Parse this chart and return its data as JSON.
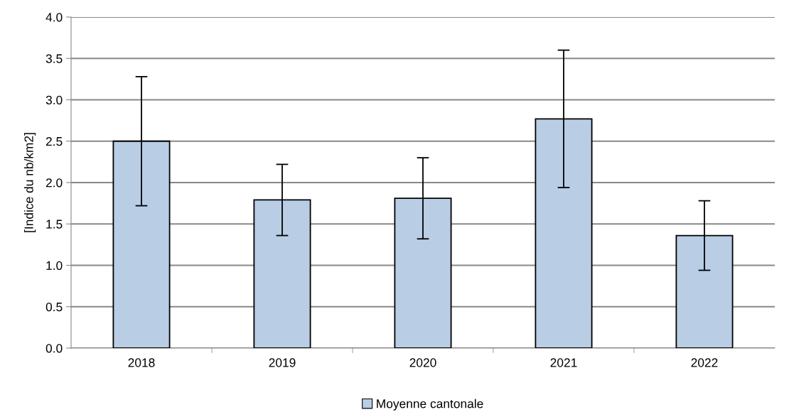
{
  "chart_data": {
    "type": "bar",
    "ylabel": "[Indice du nb/km2]",
    "categories": [
      "2018",
      "2019",
      "2020",
      "2021",
      "2022"
    ],
    "series": [
      {
        "name": "Moyenne cantonale",
        "color": "#b9cde5",
        "values": [
          2.5,
          1.79,
          1.81,
          2.77,
          1.36
        ],
        "errors": [
          0.78,
          0.43,
          0.49,
          0.83,
          0.42
        ]
      }
    ],
    "ylim": [
      0,
      4
    ],
    "yticks": [
      {
        "value": 0,
        "label": "0.0"
      },
      {
        "value": 0.5,
        "label": "0.5"
      },
      {
        "value": 1,
        "label": "1.0"
      },
      {
        "value": 1.5,
        "label": "1.5"
      },
      {
        "value": 2,
        "label": "2.0"
      },
      {
        "value": 2.5,
        "label": "2.5"
      },
      {
        "value": 3,
        "label": "3.0"
      },
      {
        "value": 3.5,
        "label": "3.5"
      },
      {
        "value": 4,
        "label": "4.0"
      }
    ],
    "grid": "y",
    "legend": "bottom"
  }
}
